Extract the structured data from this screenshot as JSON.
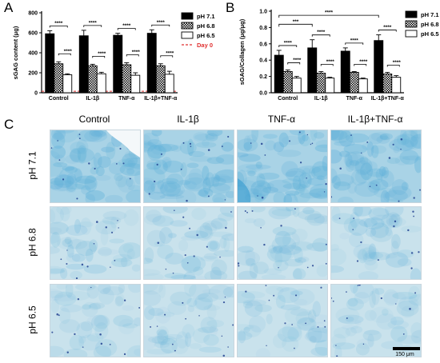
{
  "panels": {
    "a": "A",
    "b": "B",
    "c": "C"
  },
  "micrograph": {
    "columns": [
      "Control",
      "IL-1β",
      "TNF-α",
      "IL-1β+TNF-α"
    ],
    "rows": [
      "pH 7.1",
      "pH 6.8",
      "pH 6.5"
    ],
    "scale_bar": "150 μm"
  },
  "colors": {
    "ph71": "#000000",
    "ph68_fill": "#ffffff",
    "ph68_hatch": "#000000",
    "ph65": "#ffffff",
    "day0_line": "#e03030",
    "tissue_blue": "#5fb0d9"
  },
  "chart_data": [
    {
      "type": "bar",
      "title": "",
      "ylabel": "sGAG content (μg)",
      "xlabel": "",
      "categories": [
        "Control",
        "IL-1β",
        "TNF-α",
        "IL-1β+TNF-α"
      ],
      "ylim": [
        0,
        800
      ],
      "yticks": [
        0,
        200,
        400,
        600,
        800
      ],
      "series": [
        {
          "name": "pH 7.1",
          "values": [
            590,
            570,
            575,
            595
          ],
          "errors": [
            30,
            55,
            20,
            35
          ]
        },
        {
          "name": "pH 6.8",
          "values": [
            290,
            270,
            280,
            270
          ],
          "errors": [
            20,
            15,
            20,
            20
          ]
        },
        {
          "name": "pH 6.5",
          "values": [
            180,
            190,
            175,
            185
          ],
          "errors": [
            10,
            15,
            25,
            30
          ]
        }
      ],
      "reference_line": {
        "name": "Day 0",
        "value": 15
      },
      "significance": "****",
      "legend_position": "right"
    },
    {
      "type": "bar",
      "title": "",
      "ylabel": "sGAG/Collagen (μg/μg)",
      "xlabel": "",
      "categories": [
        "Control",
        "IL-1β",
        "TNF-α",
        "IL-1β+TNF-α"
      ],
      "ylim": [
        0,
        1.0
      ],
      "yticks": [
        "0.0",
        "0.2",
        "0.4",
        "0.6",
        "0.8",
        "1.0"
      ],
      "series": [
        {
          "name": "pH 7.1",
          "values": [
            0.46,
            0.55,
            0.51,
            0.64
          ],
          "errors": [
            0.06,
            0.1,
            0.04,
            0.07
          ]
        },
        {
          "name": "pH 6.8",
          "values": [
            0.26,
            0.24,
            0.25,
            0.23
          ],
          "errors": [
            0.02,
            0.02,
            0.01,
            0.02
          ]
        },
        {
          "name": "pH 6.5",
          "values": [
            0.18,
            0.18,
            0.17,
            0.19
          ],
          "errors": [
            0.02,
            0.01,
            0.01,
            0.02
          ]
        }
      ],
      "significance": "****",
      "significance_alt": "***",
      "legend_position": "right"
    }
  ]
}
